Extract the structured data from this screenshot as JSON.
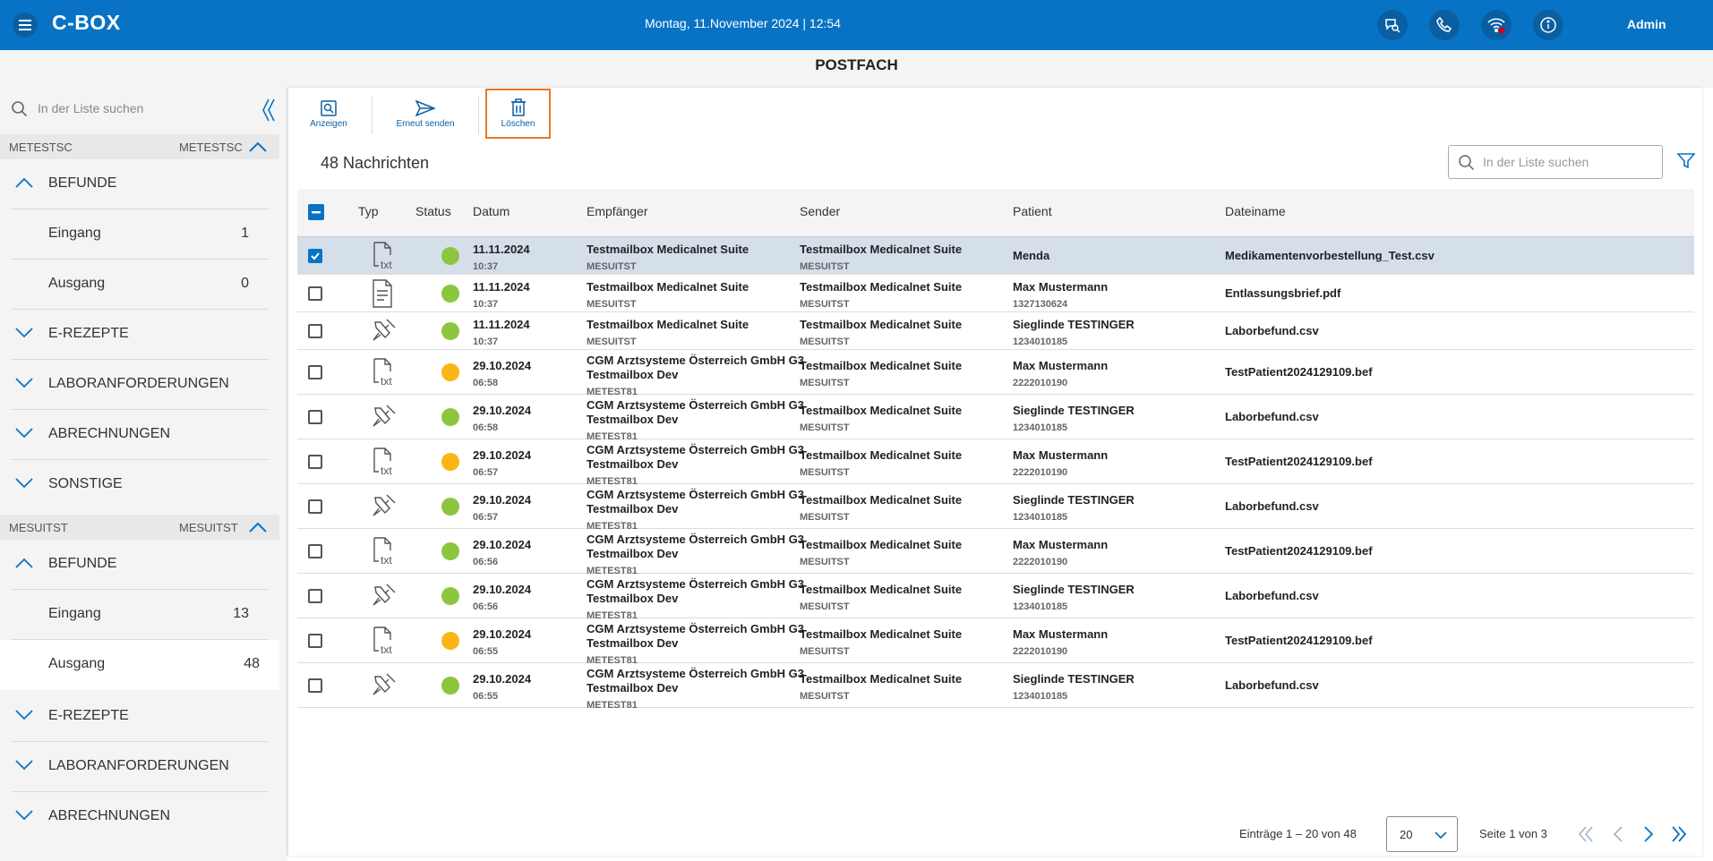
{
  "app": {
    "brand": "C-BOX",
    "datetime": "Montag, 11.November 2024 | 12:54",
    "user": "Admin"
  },
  "page_title": "POSTFACH",
  "sidebar": {
    "search_placeholder": "In der Liste suchen",
    "groups": [
      {
        "left": "METESTSC",
        "right": "METESTSC",
        "sections": [
          {
            "label": "BEFUNDE",
            "expanded": true,
            "items": [
              {
                "label": "Eingang",
                "count": "1"
              },
              {
                "label": "Ausgang",
                "count": "0"
              }
            ]
          },
          {
            "label": "E-REZEPTE",
            "expanded": false
          },
          {
            "label": "LABORANFORDERUNGEN",
            "expanded": false
          },
          {
            "label": "ABRECHNUNGEN",
            "expanded": false
          },
          {
            "label": "SONSTIGE",
            "expanded": false
          }
        ]
      },
      {
        "left": "MESUITST",
        "right": "MESUITST",
        "sections": [
          {
            "label": "BEFUNDE",
            "expanded": true,
            "items": [
              {
                "label": "Eingang",
                "count": "13"
              },
              {
                "label": "Ausgang",
                "count": "48"
              }
            ]
          },
          {
            "label": "E-REZEPTE",
            "expanded": false
          },
          {
            "label": "LABORANFORDERUNGEN",
            "expanded": false
          },
          {
            "label": "ABRECHNUNGEN",
            "expanded": false
          }
        ]
      }
    ]
  },
  "toolbar": {
    "show_label": "Anzeigen",
    "resend_label": "Erneut senden",
    "delete_label": "Löschen"
  },
  "list": {
    "count_label": "48 Nachrichten",
    "search_placeholder": "In der Liste suchen",
    "columns": [
      "Typ",
      "Status",
      "Datum",
      "Empfänger",
      "Sender",
      "Patient",
      "Dateiname"
    ],
    "rows": [
      {
        "selected": true,
        "type": "txt",
        "status": "green",
        "date": "11.11.2024",
        "time": "10:37",
        "recipient": [
          "Testmailbox Medicalnet Suite"
        ],
        "recipient_sub": "MESUITST",
        "sender": "Testmailbox Medicalnet Suite",
        "sender_sub": "MESUITST",
        "patient": "Menda",
        "patient_sub": "",
        "file": "Medikamentenvorbestellung_Test.csv"
      },
      {
        "selected": false,
        "type": "doc",
        "status": "green",
        "date": "11.11.2024",
        "time": "10:37",
        "recipient": [
          "Testmailbox Medicalnet Suite"
        ],
        "recipient_sub": "MESUITST",
        "sender": "Testmailbox Medicalnet Suite",
        "sender_sub": "MESUITST",
        "patient": "Max Mustermann",
        "patient_sub": "1327130624",
        "file": "Entlassungsbrief.pdf"
      },
      {
        "selected": false,
        "type": "lab",
        "status": "green",
        "date": "11.11.2024",
        "time": "10:37",
        "recipient": [
          "Testmailbox Medicalnet Suite"
        ],
        "recipient_sub": "MESUITST",
        "sender": "Testmailbox Medicalnet Suite",
        "sender_sub": "MESUITST",
        "patient": "Sieglinde TESTINGER",
        "patient_sub": "1234010185",
        "file": "Laborbefund.csv"
      },
      {
        "selected": false,
        "type": "txt",
        "status": "orange",
        "date": "29.10.2024",
        "time": "06:58",
        "recipient": [
          "CGM Arztsysteme Österreich GmbH G3",
          "Testmailbox Dev"
        ],
        "recipient_sub": "METEST81",
        "sender": "Testmailbox Medicalnet Suite",
        "sender_sub": "MESUITST",
        "patient": "Max Mustermann",
        "patient_sub": "2222010190",
        "file": "TestPatient2024129109.bef"
      },
      {
        "selected": false,
        "type": "lab",
        "status": "green",
        "date": "29.10.2024",
        "time": "06:58",
        "recipient": [
          "CGM Arztsysteme Österreich GmbH G3",
          "Testmailbox Dev"
        ],
        "recipient_sub": "METEST81",
        "sender": "Testmailbox Medicalnet Suite",
        "sender_sub": "MESUITST",
        "patient": "Sieglinde TESTINGER",
        "patient_sub": "1234010185",
        "file": "Laborbefund.csv"
      },
      {
        "selected": false,
        "type": "txt",
        "status": "orange",
        "date": "29.10.2024",
        "time": "06:57",
        "recipient": [
          "CGM Arztsysteme Österreich GmbH G3",
          "Testmailbox Dev"
        ],
        "recipient_sub": "METEST81",
        "sender": "Testmailbox Medicalnet Suite",
        "sender_sub": "MESUITST",
        "patient": "Max Mustermann",
        "patient_sub": "2222010190",
        "file": "TestPatient2024129109.bef"
      },
      {
        "selected": false,
        "type": "lab",
        "status": "green",
        "date": "29.10.2024",
        "time": "06:57",
        "recipient": [
          "CGM Arztsysteme Österreich GmbH G3",
          "Testmailbox Dev"
        ],
        "recipient_sub": "METEST81",
        "sender": "Testmailbox Medicalnet Suite",
        "sender_sub": "MESUITST",
        "patient": "Sieglinde TESTINGER",
        "patient_sub": "1234010185",
        "file": "Laborbefund.csv"
      },
      {
        "selected": false,
        "type": "txt",
        "status": "green",
        "date": "29.10.2024",
        "time": "06:56",
        "recipient": [
          "CGM Arztsysteme Österreich GmbH G3",
          "Testmailbox Dev"
        ],
        "recipient_sub": "METEST81",
        "sender": "Testmailbox Medicalnet Suite",
        "sender_sub": "MESUITST",
        "patient": "Max Mustermann",
        "patient_sub": "2222010190",
        "file": "TestPatient2024129109.bef"
      },
      {
        "selected": false,
        "type": "lab",
        "status": "green",
        "date": "29.10.2024",
        "time": "06:56",
        "recipient": [
          "CGM Arztsysteme Österreich GmbH G3",
          "Testmailbox Dev"
        ],
        "recipient_sub": "METEST81",
        "sender": "Testmailbox Medicalnet Suite",
        "sender_sub": "MESUITST",
        "patient": "Sieglinde TESTINGER",
        "patient_sub": "1234010185",
        "file": "Laborbefund.csv"
      },
      {
        "selected": false,
        "type": "txt",
        "status": "orange",
        "date": "29.10.2024",
        "time": "06:55",
        "recipient": [
          "CGM Arztsysteme Österreich GmbH G3",
          "Testmailbox Dev"
        ],
        "recipient_sub": "METEST81",
        "sender": "Testmailbox Medicalnet Suite",
        "sender_sub": "MESUITST",
        "patient": "Max Mustermann",
        "patient_sub": "2222010190",
        "file": "TestPatient2024129109.bef"
      },
      {
        "selected": false,
        "type": "lab",
        "status": "green",
        "date": "29.10.2024",
        "time": "06:55",
        "recipient": [
          "CGM Arztsysteme Österreich GmbH G3",
          "Testmailbox Dev"
        ],
        "recipient_sub": "METEST81",
        "sender": "Testmailbox Medicalnet Suite",
        "sender_sub": "MESUITST",
        "patient": "Sieglinde TESTINGER",
        "patient_sub": "1234010185",
        "file": "Laborbefund.csv"
      }
    ]
  },
  "pager": {
    "info": "Einträge 1 – 20 von 48",
    "page_size": "20",
    "page": "Seite 1 von 3"
  },
  "colors": {
    "brand": "#0873c4",
    "status_green": "#8cc63f",
    "status_orange": "#fbb516",
    "highlight": "#e87722",
    "selected_row": "#d5dfea"
  }
}
